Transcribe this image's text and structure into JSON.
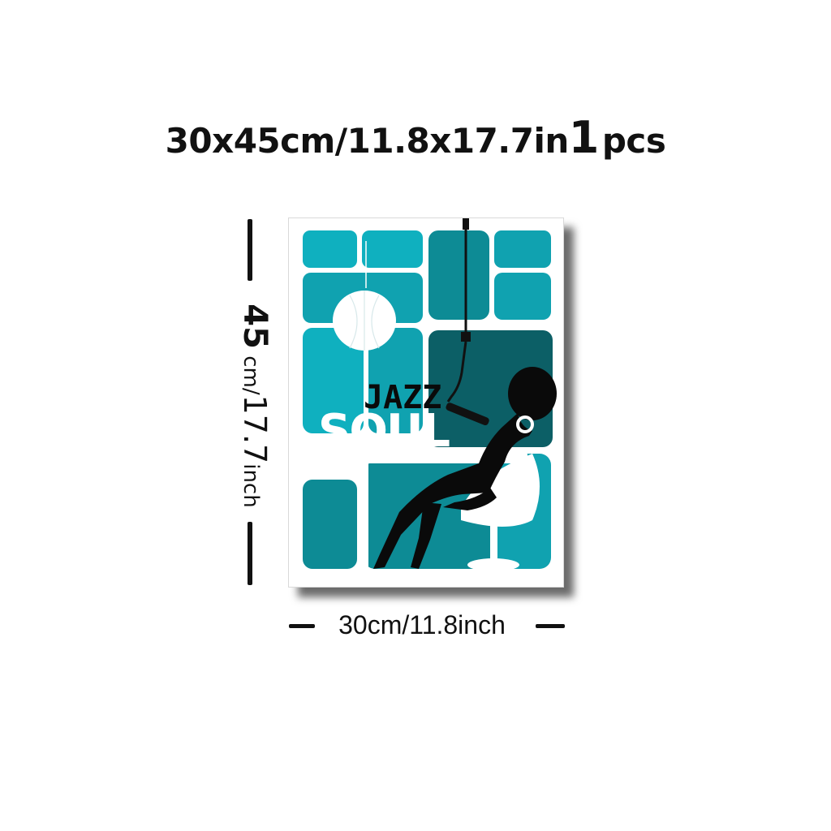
{
  "listing": {
    "size_text": "30x45cm/11.8x17.7in",
    "quantity_number": "1",
    "quantity_unit": "pcs"
  },
  "dimensions": {
    "height_value": "45",
    "height_unit": " cm/",
    "height_inch_value": "17.7",
    "height_inch_unit": "inch",
    "width_label": "30cm/11.8inch"
  },
  "poster": {
    "title_top": "JAZZ",
    "title_bottom": "SOUL",
    "colors": {
      "teal": "#0fb0bf",
      "teal_mid": "#10a2b0",
      "teal_dark": "#0d7f86",
      "panel_dark": "#0c5f66",
      "silhouette": "#0a0a0a",
      "frame": "#ffffff"
    }
  }
}
